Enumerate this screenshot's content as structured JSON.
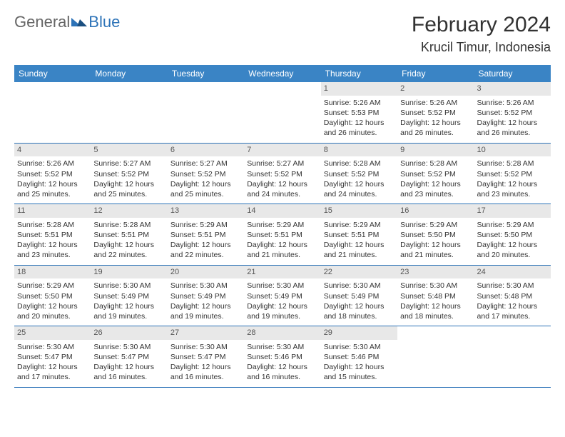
{
  "logo": {
    "text1": "General",
    "text2": "Blue"
  },
  "title": "February 2024",
  "location": "Krucil Timur, Indonesia",
  "colors": {
    "header_bg": "#3a84c5",
    "header_text": "#ffffff",
    "row_border": "#2d73b8",
    "daynum_bg": "#e8e8e8",
    "daynum_text": "#555555",
    "body_text": "#333333",
    "logo_gray": "#666666",
    "logo_blue": "#2d73b8"
  },
  "weekdays": [
    "Sunday",
    "Monday",
    "Tuesday",
    "Wednesday",
    "Thursday",
    "Friday",
    "Saturday"
  ],
  "weeks": [
    [
      null,
      null,
      null,
      null,
      {
        "n": "1",
        "sr": "Sunrise: 5:26 AM",
        "ss": "Sunset: 5:53 PM",
        "dl1": "Daylight: 12 hours",
        "dl2": "and 26 minutes."
      },
      {
        "n": "2",
        "sr": "Sunrise: 5:26 AM",
        "ss": "Sunset: 5:52 PM",
        "dl1": "Daylight: 12 hours",
        "dl2": "and 26 minutes."
      },
      {
        "n": "3",
        "sr": "Sunrise: 5:26 AM",
        "ss": "Sunset: 5:52 PM",
        "dl1": "Daylight: 12 hours",
        "dl2": "and 26 minutes."
      }
    ],
    [
      {
        "n": "4",
        "sr": "Sunrise: 5:26 AM",
        "ss": "Sunset: 5:52 PM",
        "dl1": "Daylight: 12 hours",
        "dl2": "and 25 minutes."
      },
      {
        "n": "5",
        "sr": "Sunrise: 5:27 AM",
        "ss": "Sunset: 5:52 PM",
        "dl1": "Daylight: 12 hours",
        "dl2": "and 25 minutes."
      },
      {
        "n": "6",
        "sr": "Sunrise: 5:27 AM",
        "ss": "Sunset: 5:52 PM",
        "dl1": "Daylight: 12 hours",
        "dl2": "and 25 minutes."
      },
      {
        "n": "7",
        "sr": "Sunrise: 5:27 AM",
        "ss": "Sunset: 5:52 PM",
        "dl1": "Daylight: 12 hours",
        "dl2": "and 24 minutes."
      },
      {
        "n": "8",
        "sr": "Sunrise: 5:28 AM",
        "ss": "Sunset: 5:52 PM",
        "dl1": "Daylight: 12 hours",
        "dl2": "and 24 minutes."
      },
      {
        "n": "9",
        "sr": "Sunrise: 5:28 AM",
        "ss": "Sunset: 5:52 PM",
        "dl1": "Daylight: 12 hours",
        "dl2": "and 23 minutes."
      },
      {
        "n": "10",
        "sr": "Sunrise: 5:28 AM",
        "ss": "Sunset: 5:52 PM",
        "dl1": "Daylight: 12 hours",
        "dl2": "and 23 minutes."
      }
    ],
    [
      {
        "n": "11",
        "sr": "Sunrise: 5:28 AM",
        "ss": "Sunset: 5:51 PM",
        "dl1": "Daylight: 12 hours",
        "dl2": "and 23 minutes."
      },
      {
        "n": "12",
        "sr": "Sunrise: 5:28 AM",
        "ss": "Sunset: 5:51 PM",
        "dl1": "Daylight: 12 hours",
        "dl2": "and 22 minutes."
      },
      {
        "n": "13",
        "sr": "Sunrise: 5:29 AM",
        "ss": "Sunset: 5:51 PM",
        "dl1": "Daylight: 12 hours",
        "dl2": "and 22 minutes."
      },
      {
        "n": "14",
        "sr": "Sunrise: 5:29 AM",
        "ss": "Sunset: 5:51 PM",
        "dl1": "Daylight: 12 hours",
        "dl2": "and 21 minutes."
      },
      {
        "n": "15",
        "sr": "Sunrise: 5:29 AM",
        "ss": "Sunset: 5:51 PM",
        "dl1": "Daylight: 12 hours",
        "dl2": "and 21 minutes."
      },
      {
        "n": "16",
        "sr": "Sunrise: 5:29 AM",
        "ss": "Sunset: 5:50 PM",
        "dl1": "Daylight: 12 hours",
        "dl2": "and 21 minutes."
      },
      {
        "n": "17",
        "sr": "Sunrise: 5:29 AM",
        "ss": "Sunset: 5:50 PM",
        "dl1": "Daylight: 12 hours",
        "dl2": "and 20 minutes."
      }
    ],
    [
      {
        "n": "18",
        "sr": "Sunrise: 5:29 AM",
        "ss": "Sunset: 5:50 PM",
        "dl1": "Daylight: 12 hours",
        "dl2": "and 20 minutes."
      },
      {
        "n": "19",
        "sr": "Sunrise: 5:30 AM",
        "ss": "Sunset: 5:49 PM",
        "dl1": "Daylight: 12 hours",
        "dl2": "and 19 minutes."
      },
      {
        "n": "20",
        "sr": "Sunrise: 5:30 AM",
        "ss": "Sunset: 5:49 PM",
        "dl1": "Daylight: 12 hours",
        "dl2": "and 19 minutes."
      },
      {
        "n": "21",
        "sr": "Sunrise: 5:30 AM",
        "ss": "Sunset: 5:49 PM",
        "dl1": "Daylight: 12 hours",
        "dl2": "and 19 minutes."
      },
      {
        "n": "22",
        "sr": "Sunrise: 5:30 AM",
        "ss": "Sunset: 5:49 PM",
        "dl1": "Daylight: 12 hours",
        "dl2": "and 18 minutes."
      },
      {
        "n": "23",
        "sr": "Sunrise: 5:30 AM",
        "ss": "Sunset: 5:48 PM",
        "dl1": "Daylight: 12 hours",
        "dl2": "and 18 minutes."
      },
      {
        "n": "24",
        "sr": "Sunrise: 5:30 AM",
        "ss": "Sunset: 5:48 PM",
        "dl1": "Daylight: 12 hours",
        "dl2": "and 17 minutes."
      }
    ],
    [
      {
        "n": "25",
        "sr": "Sunrise: 5:30 AM",
        "ss": "Sunset: 5:47 PM",
        "dl1": "Daylight: 12 hours",
        "dl2": "and 17 minutes."
      },
      {
        "n": "26",
        "sr": "Sunrise: 5:30 AM",
        "ss": "Sunset: 5:47 PM",
        "dl1": "Daylight: 12 hours",
        "dl2": "and 16 minutes."
      },
      {
        "n": "27",
        "sr": "Sunrise: 5:30 AM",
        "ss": "Sunset: 5:47 PM",
        "dl1": "Daylight: 12 hours",
        "dl2": "and 16 minutes."
      },
      {
        "n": "28",
        "sr": "Sunrise: 5:30 AM",
        "ss": "Sunset: 5:46 PM",
        "dl1": "Daylight: 12 hours",
        "dl2": "and 16 minutes."
      },
      {
        "n": "29",
        "sr": "Sunrise: 5:30 AM",
        "ss": "Sunset: 5:46 PM",
        "dl1": "Daylight: 12 hours",
        "dl2": "and 15 minutes."
      },
      null,
      null
    ]
  ]
}
